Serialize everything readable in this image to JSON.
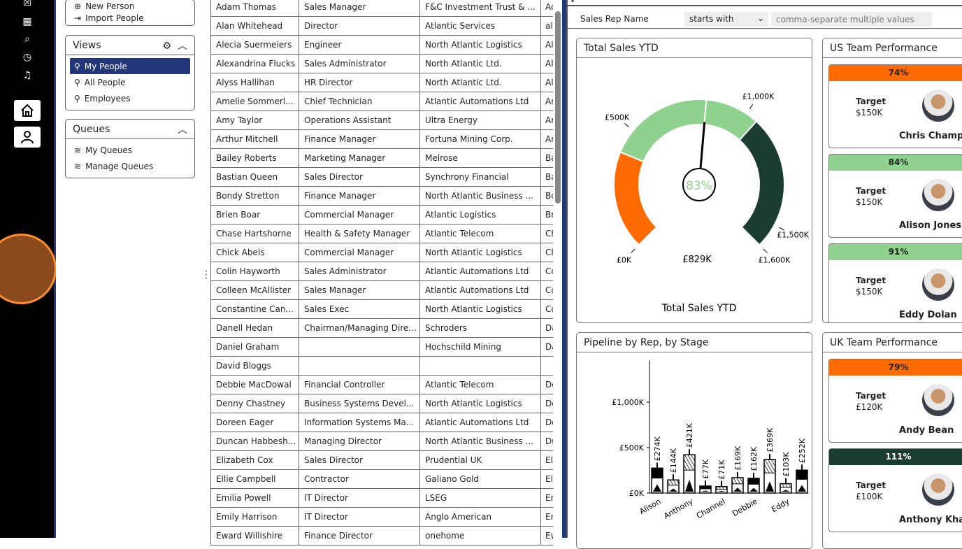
{
  "rail": {
    "icons": [
      "close-icon",
      "apps-icon",
      "search-icon",
      "history-icon",
      "bell-icon"
    ],
    "buttons": [
      "home-icon",
      "person-icon"
    ]
  },
  "sidebar": {
    "actions": {
      "new_person": "New Person",
      "import_people": "Import People"
    },
    "views": {
      "title": "Views",
      "items": [
        {
          "label": "My People",
          "selected": true
        },
        {
          "label": "All People"
        },
        {
          "label": "Employees"
        }
      ]
    },
    "queues": {
      "title": "Queues",
      "items": [
        {
          "label": "My Queues"
        },
        {
          "label": "Manage Queues"
        }
      ]
    }
  },
  "table": {
    "rows": [
      [
        "Adam Thomas",
        "Sales Manager",
        "F&C Investment Trust & ...",
        "Ad"
      ],
      [
        "Alan Whitehead",
        "Director",
        "Atlantic Services",
        "al"
      ],
      [
        "Alecia Suermeiers",
        "Engineer",
        "North Atlantic Logistics",
        "Al"
      ],
      [
        "Alexandrina Flucks",
        "Sales Administrator",
        "North Atlantic Ltd.",
        "Al"
      ],
      [
        "Alyss Hallihan",
        "HR Director",
        "North Atlantic Ltd.",
        "Al"
      ],
      [
        "Amelie Sommerl...",
        "Chief Technician",
        "Atlantic Automations Ltd",
        "Ar"
      ],
      [
        "Amy Taylor",
        "Operations Assistant",
        "Ultra Energy",
        "Ar"
      ],
      [
        "Arthur Mitchell",
        "Finance Manager",
        "Fortuna Mining Corp.",
        "Ar"
      ],
      [
        "Bailey Roberts",
        "Marketing Manager",
        "Melrose",
        "Ba"
      ],
      [
        "Bastian Queen",
        "Sales Director",
        "Synchrony Financial",
        "Ba"
      ],
      [
        "Bondy Stretton",
        "Finance Manager",
        "North Atlantic Business ...",
        "Bo"
      ],
      [
        "Brien Boar",
        "Commercial Manager",
        "Atlantic Logistics",
        "Br"
      ],
      [
        "Chase Hartshorne",
        "Health & Safety Manager",
        "Atlantic Telecom",
        "Ch"
      ],
      [
        "Chick Abels",
        "Commercial Manager",
        "North Atlantic Logistics",
        "Ch"
      ],
      [
        "Colin Hayworth",
        "Sales Administrator",
        "Atlantic Automations Ltd",
        "Co"
      ],
      [
        "Colleen McAllister",
        "Sales Manager",
        "Atlantic Automations Ltd",
        "Co"
      ],
      [
        "Constantine Can...",
        "Sales Exec",
        "North Atlantic Logistics",
        "Co"
      ],
      [
        "Danell Hedan",
        "Chairman/Managing Dire...",
        "Schroders",
        "Da"
      ],
      [
        "Daniel Graham",
        "",
        "Hochschild Mining",
        "Da"
      ],
      [
        "David Bloggs",
        "",
        "",
        ""
      ],
      [
        "Debbie MacDowal",
        "Financial Controller",
        "Atlantic Telecom",
        "De"
      ],
      [
        "Denny Chastney",
        "Business Systems Devel...",
        "North Atlantic Logistics",
        "De"
      ],
      [
        "Doreen Eager",
        "Information Systems Ma...",
        "Atlantic Automations Ltd",
        "Do"
      ],
      [
        "Duncan Habbesh...",
        "Managing Director",
        "North Atlantic Business ...",
        "Du"
      ],
      [
        "Elizabeth Cox",
        "Sales Director",
        "Prudential UK",
        "El"
      ],
      [
        "Ellie Campbell",
        "Contractor",
        "Galiano Gold",
        "El"
      ],
      [
        "Emilia Powell",
        "IT Director",
        "LSEG",
        "Em"
      ],
      [
        "Emily Harrison",
        "IT Director",
        "Anglo American",
        "Em"
      ],
      [
        "Eward Willishire",
        "Finance Director",
        "onehome",
        "Ew"
      ]
    ]
  },
  "filter": {
    "label": "Sales Rep Name",
    "operator": "starts with",
    "placeholder": "comma-separate multiple values"
  },
  "gauge": {
    "title": "Total Sales YTD",
    "footer": "Total Sales YTD",
    "value_label": "£829K",
    "percent": "83%",
    "value": 829,
    "min": 0,
    "max": 1600,
    "segments": [
      {
        "from": 0,
        "to": 400,
        "color": "#ff6b00"
      },
      {
        "from": 400,
        "to": 829,
        "color": "#8fd18f"
      },
      {
        "from": 829,
        "to": 1050,
        "color": "#8fd18f"
      },
      {
        "from": 1050,
        "to": 1600,
        "color": "#1b3d31"
      }
    ],
    "ticks": [
      {
        "value": 0,
        "label": "£0K"
      },
      {
        "value": 500,
        "label": "£500K"
      },
      {
        "value": 1000,
        "label": "£1,000K"
      },
      {
        "value": 1500,
        "label": "£1,500K"
      },
      {
        "value": 1600,
        "label": "£1,600K"
      }
    ]
  },
  "us_team": {
    "title": "US Team Performance",
    "people": [
      {
        "pct": "74%",
        "color": "#ff6b00",
        "target_label": "Target",
        "target": "$150K",
        "name": "Chris Champr"
      },
      {
        "pct": "84%",
        "color": "#8fd18f",
        "target_label": "Target",
        "target": "$150K",
        "name": "Alison Jones"
      },
      {
        "pct": "91%",
        "color": "#8fd18f",
        "target_label": "Target",
        "target": "$150K",
        "name": "Eddy Dolan"
      }
    ]
  },
  "uk_team": {
    "title": "UK Team Performance",
    "people": [
      {
        "pct": "79%",
        "color": "#ff6b00",
        "target_label": "Target",
        "target": "£120K",
        "name": "Andy Bean"
      },
      {
        "pct": "111%",
        "color": "#1b3d31",
        "target_label": "Target",
        "target": "£100K",
        "name": "Anthony Kha"
      }
    ]
  },
  "chart_data": {
    "type": "bar",
    "title": "Pipeline by Rep, by Stage",
    "categories": [
      "Alison",
      "",
      "Anthony",
      "",
      "Channel",
      "",
      "Debbie",
      "",
      "Eddy",
      ""
    ],
    "values": [
      274,
      144,
      421,
      77,
      71,
      169,
      162,
      369,
      103,
      252
    ],
    "data_labels": [
      "£274K",
      "£144K",
      "£421K",
      "£77K",
      "£71K",
      "£169K",
      "£162K",
      "£369K",
      "£103K",
      "£252K"
    ],
    "yticks": [
      {
        "value": 0,
        "label": "£0K"
      },
      {
        "value": 500,
        "label": "£500K"
      },
      {
        "value": 1000,
        "label": "£1,000K"
      }
    ],
    "ylim": [
      0,
      1460
    ],
    "stacked": true,
    "grid": false
  }
}
